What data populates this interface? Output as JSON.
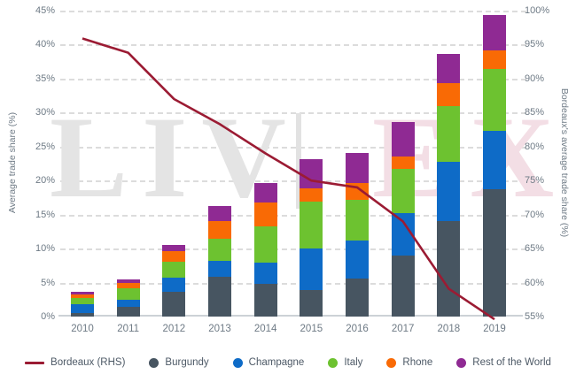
{
  "watermark": {
    "liv": "LIV",
    "separator": "|",
    "ex": "EX"
  },
  "chart_data": {
    "type": "combo-stacked-bar-line",
    "grid": "dashed horizontal, legend bottom, no title",
    "categories": [
      "2010",
      "2011",
      "2012",
      "2013",
      "2014",
      "2015",
      "2016",
      "2017",
      "2018",
      "2019"
    ],
    "series": [
      {
        "name": "Burgundy",
        "type": "bar",
        "color": "#475561",
        "values": [
          0.5,
          1.4,
          3.6,
          5.8,
          4.8,
          3.9,
          5.6,
          9.0,
          14.1,
          18.7
        ]
      },
      {
        "name": "Champagne",
        "type": "bar",
        "color": "#0e6bc7",
        "values": [
          1.3,
          1.1,
          2.1,
          2.4,
          3.2,
          6.1,
          5.6,
          6.2,
          8.7,
          8.6
        ]
      },
      {
        "name": "Italy",
        "type": "bar",
        "color": "#6dc230",
        "values": [
          0.9,
          1.7,
          2.4,
          3.3,
          5.3,
          6.9,
          6.0,
          6.5,
          8.1,
          9.1
        ]
      },
      {
        "name": "Rhone",
        "type": "bar",
        "color": "#f96a05",
        "values": [
          0.5,
          0.8,
          1.5,
          2.5,
          3.5,
          1.9,
          2.5,
          1.9,
          3.5,
          2.7
        ]
      },
      {
        "name": "Rest of the World",
        "type": "bar",
        "color": "#8f2a93",
        "values": [
          0.4,
          0.5,
          1.0,
          2.2,
          2.9,
          4.4,
          4.3,
          5.0,
          4.2,
          5.2
        ]
      }
    ],
    "line_series": {
      "name": "Bordeaux (RHS)",
      "type": "line",
      "axis": "right",
      "color": "#9b1b33",
      "values": [
        95.9,
        93.8,
        87.0,
        83.3,
        79.0,
        75.0,
        74.0,
        69.0,
        59.1,
        54.6
      ]
    },
    "left_axis": {
      "title": "Average trade share (%)",
      "min": 0,
      "max": 45,
      "step": 5,
      "ticks": [
        "0%",
        "5%",
        "10%",
        "15%",
        "20%",
        "25%",
        "30%",
        "35%",
        "40%",
        "45%"
      ]
    },
    "right_axis": {
      "title": "Bordeaux's average trade share (%)",
      "min": 55,
      "max": 100,
      "step": 5,
      "ticks": [
        "55%",
        "60%",
        "65%",
        "70%",
        "75%",
        "80%",
        "85%",
        "90%",
        "95%",
        "100%"
      ]
    },
    "legend": [
      {
        "label": "Bordeaux (RHS)",
        "swatch": "line",
        "color": "#9b1b33"
      },
      {
        "label": "Burgundy",
        "swatch": "circle",
        "color": "#475561"
      },
      {
        "label": "Champagne",
        "swatch": "circle",
        "color": "#0e6bc7"
      },
      {
        "label": "Italy",
        "swatch": "circle",
        "color": "#6dc230"
      },
      {
        "label": "Rhone",
        "swatch": "circle",
        "color": "#f96a05"
      },
      {
        "label": "Rest of the World",
        "swatch": "circle",
        "color": "#8f2a93"
      }
    ]
  }
}
